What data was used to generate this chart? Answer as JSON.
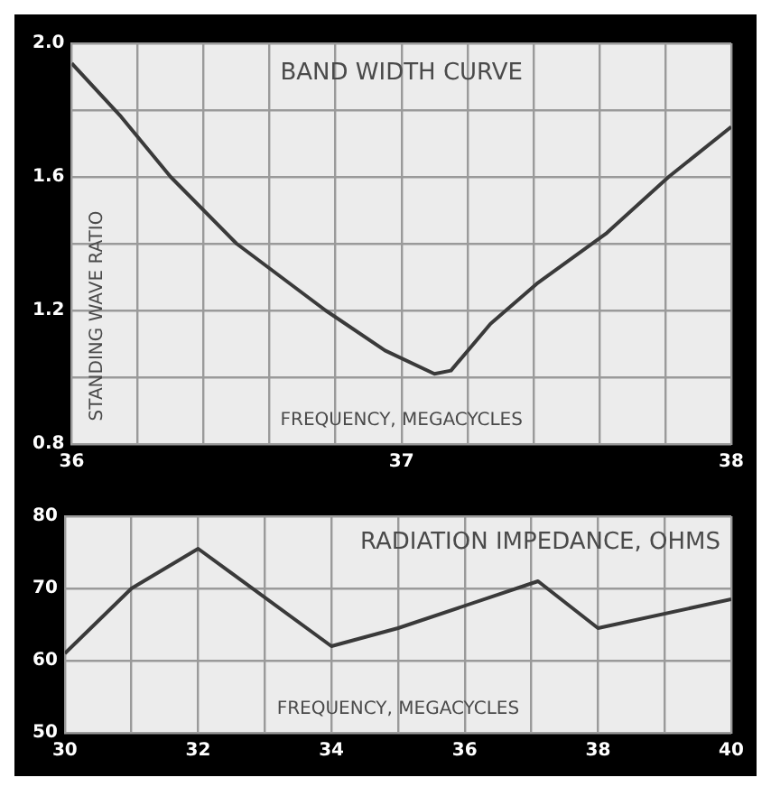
{
  "chart_data": [
    {
      "type": "line",
      "title": "BAND WIDTH CURVE",
      "xlabel": "FREQUENCY, MEGACYCLES",
      "ylabel": "STANDING WAVE RATIO",
      "x": [
        36,
        36.15,
        36.3,
        36.5,
        36.77,
        36.95,
        37.1,
        37.15,
        37.27,
        37.41,
        37.62,
        37.81,
        38
      ],
      "series": [
        {
          "color": "#3a3a3a",
          "values": [
            1.94,
            1.78,
            1.6,
            1.4,
            1.2,
            1.08,
            1.01,
            1.02,
            1.16,
            1.28,
            1.43,
            1.6,
            1.75
          ]
        }
      ],
      "xlim": [
        36,
        38
      ],
      "xticks": [
        36,
        {
          "value": 36.2,
          "label": null
        },
        {
          "value": 36.4,
          "label": null
        },
        {
          "value": 36.6,
          "label": null
        },
        {
          "value": 36.8,
          "label": null
        },
        37,
        {
          "value": 37.2,
          "label": null
        },
        {
          "value": 37.4,
          "label": null
        },
        {
          "value": 37.6,
          "label": null
        },
        {
          "value": 37.8,
          "label": null
        },
        38
      ],
      "ylim": [
        0.8,
        2.0
      ],
      "yticks": [
        0.8,
        {
          "value": 1.0,
          "label": null
        },
        1.2,
        {
          "value": 1.4,
          "label": null
        },
        1.6,
        {
          "value": 1.8,
          "label": null
        },
        {
          "value": 2.0,
          "label": "2.0"
        }
      ],
      "grid": true,
      "legend": false,
      "marker": "none",
      "line_style": "solid"
    },
    {
      "type": "line",
      "title": "RADIATION IMPEDANCE, OHMS",
      "xlabel": "FREQUENCY, MEGACYCLES",
      "x": [
        30,
        31,
        32,
        34,
        35,
        37.1,
        38,
        40
      ],
      "series": [
        {
          "color": "#3a3a3a",
          "values": [
            61,
            70,
            75.5,
            62,
            64.5,
            71,
            64.5,
            68.5
          ]
        }
      ],
      "xlim": [
        30,
        40
      ],
      "xticks": [
        30,
        {
          "value": 31,
          "label": null
        },
        32,
        {
          "value": 33,
          "label": null
        },
        34,
        {
          "value": 35,
          "label": null
        },
        36,
        {
          "value": 37,
          "label": null
        },
        38,
        {
          "value": 39,
          "label": null
        },
        40
      ],
      "ylim": [
        50,
        80
      ],
      "yticks": [
        50,
        60,
        70,
        80
      ],
      "grid": true,
      "legend": false,
      "marker": "none",
      "line_style": "solid"
    }
  ]
}
